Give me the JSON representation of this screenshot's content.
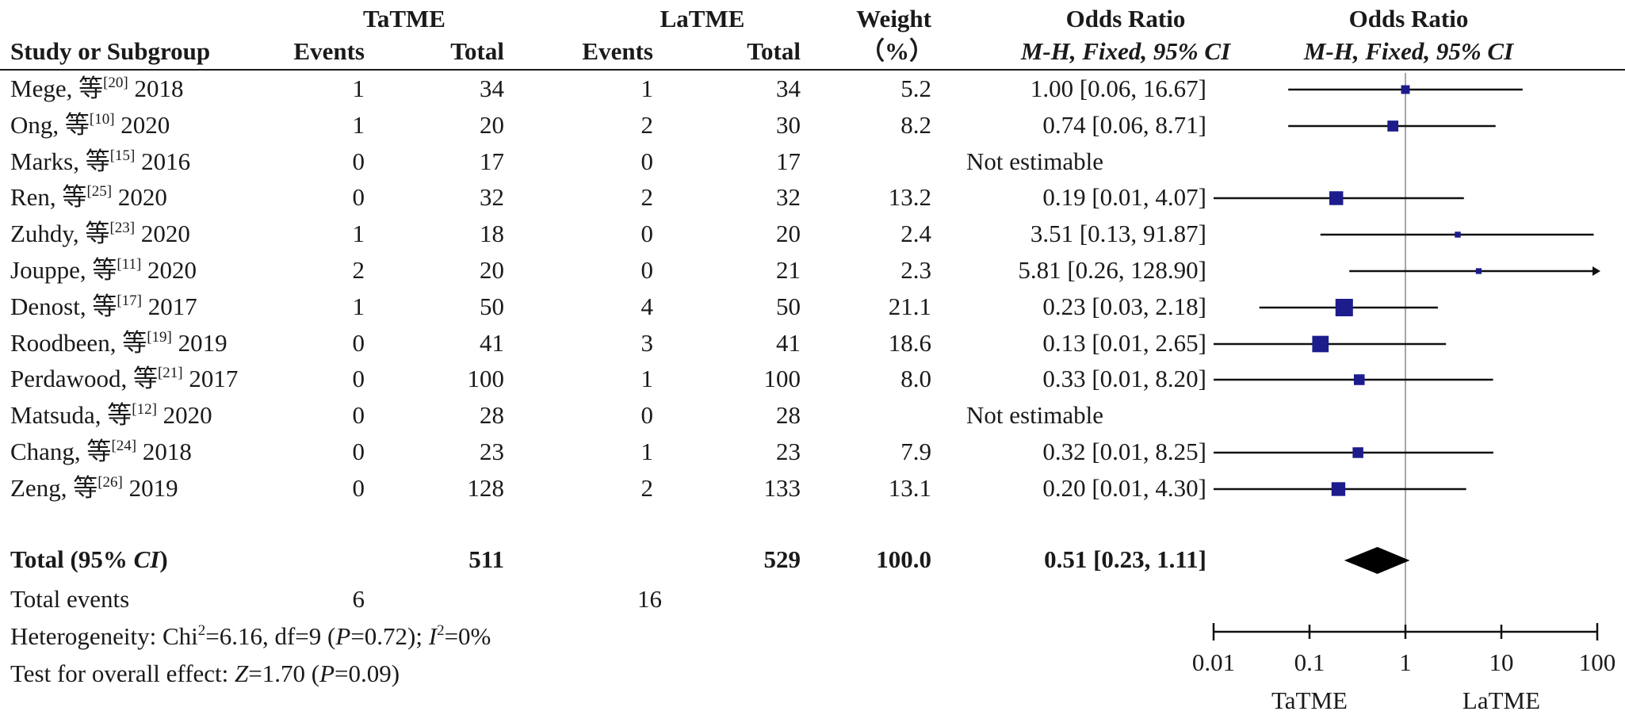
{
  "headers": {
    "group1": "TaTME",
    "group2": "LaTME",
    "study": "Study or Subgroup",
    "events": "Events",
    "total": "Total",
    "weight_top": "Weight",
    "weight_unit": "（%）",
    "or_table": "Odds Ratio",
    "or_table_method": "M-H, Fixed, 95% CI",
    "or_plot": "Odds Ratio",
    "or_plot_method": "M-H, Fixed, 95% CI"
  },
  "studies": [
    {
      "author": "Mege, 等",
      "ref": "[20]",
      "year": "2018",
      "e1": "1",
      "n1": "34",
      "e2": "1",
      "n2": "34",
      "weight": "5.2",
      "or_text": "1.00 [0.06, 16.67]"
    },
    {
      "author": "Ong, 等",
      "ref": "[10]",
      "year": "2020",
      "e1": "1",
      "n1": "20",
      "e2": "2",
      "n2": "30",
      "weight": "8.2",
      "or_text": "0.74 [0.06, 8.71]"
    },
    {
      "author": "Marks, 等",
      "ref": "[15]",
      "year": "2016",
      "e1": "0",
      "n1": "17",
      "e2": "0",
      "n2": "17",
      "weight": "",
      "or_text": "Not estimable"
    },
    {
      "author": "Ren, 等",
      "ref": "[25]",
      "year": "2020",
      "e1": "0",
      "n1": "32",
      "e2": "2",
      "n2": "32",
      "weight": "13.2",
      "or_text": "0.19 [0.01, 4.07]"
    },
    {
      "author": "Zuhdy, 等",
      "ref": "[23]",
      "year": "2020",
      "e1": "1",
      "n1": "18",
      "e2": "0",
      "n2": "20",
      "weight": "2.4",
      "or_text": "3.51 [0.13, 91.87]"
    },
    {
      "author": "Jouppe, 等",
      "ref": "[11]",
      "year": "2020",
      "e1": "2",
      "n1": "20",
      "e2": "0",
      "n2": "21",
      "weight": "2.3",
      "or_text": "5.81 [0.26, 128.90]"
    },
    {
      "author": "Denost, 等",
      "ref": "[17]",
      "year": "2017",
      "e1": "1",
      "n1": "50",
      "e2": "4",
      "n2": "50",
      "weight": "21.1",
      "or_text": "0.23 [0.03, 2.18]"
    },
    {
      "author": "Roodbeen, 等",
      "ref": "[19]",
      "year": "2019",
      "e1": "0",
      "n1": "41",
      "e2": "3",
      "n2": "41",
      "weight": "18.6",
      "or_text": "0.13 [0.01, 2.65]"
    },
    {
      "author": "Perdawood, 等",
      "ref": "[21]",
      "year": "2017",
      "e1": "0",
      "n1": "100",
      "e2": "1",
      "n2": "100",
      "weight": "8.0",
      "or_text": "0.33 [0.01, 8.20]"
    },
    {
      "author": "Matsuda, 等",
      "ref": "[12]",
      "year": "2020",
      "e1": "0",
      "n1": "28",
      "e2": "0",
      "n2": "28",
      "weight": "",
      "or_text": "Not estimable"
    },
    {
      "author": "Chang, 等",
      "ref": "[24]",
      "year": "2018",
      "e1": "0",
      "n1": "23",
      "e2": "1",
      "n2": "23",
      "weight": "7.9",
      "or_text": "0.32 [0.01, 8.25]"
    },
    {
      "author": "Zeng, 等",
      "ref": "[26]",
      "year": "2019",
      "e1": "0",
      "n1": "128",
      "e2": "2",
      "n2": "133",
      "weight": "13.1",
      "or_text": "0.20 [0.01, 4.30]"
    }
  ],
  "total": {
    "label_prefix": "Total (95% ",
    "label_ci": "CI",
    "label_suffix": ")",
    "n1": "511",
    "n2": "529",
    "weight": "100.0",
    "or_text": "0.51 [0.23, 1.11]"
  },
  "events_row": {
    "label": "Total events",
    "e1": "6",
    "e2": "16"
  },
  "heterogeneity": {
    "prefix": "Heterogeneity: Chi",
    "sup": "2",
    "mid": "=6.16, df=9 (",
    "p": "P",
    "mid2": "=0.72); ",
    "i": "I",
    "sup2": "2",
    "suffix": "=0%"
  },
  "overall_test": {
    "prefix": "Test for overall effect: ",
    "z": "Z",
    "mid": "=1.70 (",
    "p": "P",
    "suffix": "=0.09)"
  },
  "axis": {
    "ticks": [
      "0.01",
      "0.1",
      "1",
      "10",
      "100"
    ],
    "favours_left": "TaTME",
    "favours_right": "LaTME"
  },
  "colors": {
    "marker": "#1c1c8c",
    "line": "#111111",
    "diamond": "#000000",
    "null_line": "#888888"
  },
  "chart_data": {
    "type": "forest",
    "scale": "log",
    "xlim": [
      0.01,
      100
    ],
    "null_value": 1,
    "studies": [
      {
        "name": "Mege 2018",
        "or": 1.0,
        "lo": 0.06,
        "hi": 16.67,
        "weight": 5.2
      },
      {
        "name": "Ong 2020",
        "or": 0.74,
        "lo": 0.06,
        "hi": 8.71,
        "weight": 8.2
      },
      {
        "name": "Marks 2016",
        "or": null,
        "lo": null,
        "hi": null,
        "weight": null
      },
      {
        "name": "Ren 2020",
        "or": 0.19,
        "lo": 0.01,
        "hi": 4.07,
        "weight": 13.2
      },
      {
        "name": "Zuhdy 2020",
        "or": 3.51,
        "lo": 0.13,
        "hi": 91.87,
        "weight": 2.4
      },
      {
        "name": "Jouppe 2020",
        "or": 5.81,
        "lo": 0.26,
        "hi": 128.9,
        "weight": 2.3
      },
      {
        "name": "Denost 2017",
        "or": 0.23,
        "lo": 0.03,
        "hi": 2.18,
        "weight": 21.1
      },
      {
        "name": "Roodbeen 2019",
        "or": 0.13,
        "lo": 0.01,
        "hi": 2.65,
        "weight": 18.6
      },
      {
        "name": "Perdawood 2017",
        "or": 0.33,
        "lo": 0.01,
        "hi": 8.2,
        "weight": 8.0
      },
      {
        "name": "Matsuda 2020",
        "or": null,
        "lo": null,
        "hi": null,
        "weight": null
      },
      {
        "name": "Chang 2018",
        "or": 0.32,
        "lo": 0.01,
        "hi": 8.25,
        "weight": 7.9
      },
      {
        "name": "Zeng 2019",
        "or": 0.2,
        "lo": 0.01,
        "hi": 4.3,
        "weight": 13.1
      }
    ],
    "pooled": {
      "or": 0.51,
      "lo": 0.23,
      "hi": 1.11,
      "weight": 100.0
    }
  }
}
